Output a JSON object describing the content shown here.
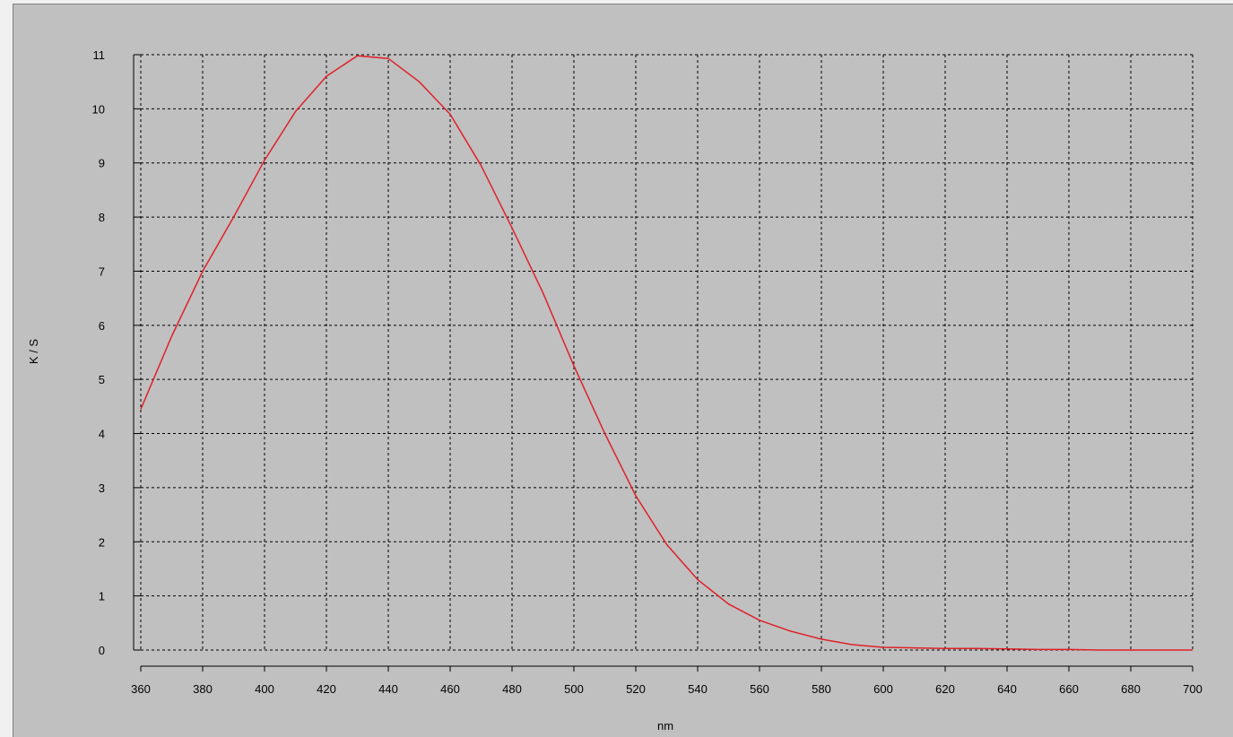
{
  "chart_data": {
    "type": "line",
    "title": "",
    "xlabel": "nm",
    "ylabel": "K / S",
    "xlim": [
      360,
      700
    ],
    "ylim": [
      0,
      11
    ],
    "xticks": [
      360,
      380,
      400,
      420,
      440,
      460,
      480,
      500,
      520,
      540,
      560,
      580,
      600,
      620,
      640,
      660,
      680,
      700
    ],
    "yticks": [
      0,
      1,
      2,
      3,
      4,
      5,
      6,
      7,
      8,
      9,
      10,
      11
    ],
    "grid": true,
    "legend": "none",
    "series": [
      {
        "color": "#e0202a",
        "x": [
          360,
          370,
          380,
          390,
          400,
          410,
          420,
          430,
          440,
          450,
          460,
          470,
          480,
          490,
          500,
          510,
          520,
          530,
          540,
          550,
          560,
          570,
          580,
          590,
          600,
          610,
          620,
          630,
          640,
          650,
          660,
          670,
          680,
          690,
          700
        ],
        "y": [
          4.45,
          5.8,
          7.0,
          8.0,
          9.05,
          9.95,
          10.6,
          10.98,
          10.93,
          10.5,
          9.9,
          8.95,
          7.8,
          6.6,
          5.25,
          4.0,
          2.85,
          1.95,
          1.3,
          0.85,
          0.55,
          0.35,
          0.2,
          0.1,
          0.05,
          0.04,
          0.03,
          0.03,
          0.02,
          0.01,
          0.01,
          0.0,
          0.0,
          0.0,
          0.0
        ]
      }
    ]
  }
}
